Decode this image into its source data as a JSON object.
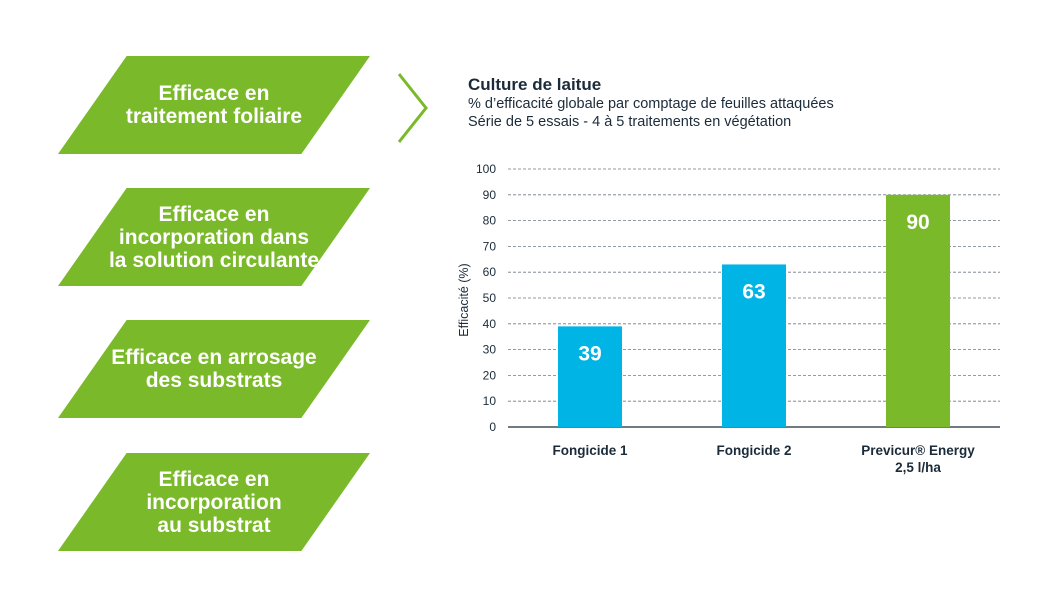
{
  "colors": {
    "green": "#7ab929",
    "blue": "#00b4e6",
    "text": "#1b2b3a",
    "grid": "#6f7b87"
  },
  "benefits": [
    "Efficace en\ntraitement foliaire",
    "Efficace en\nincorporation dans\nla solution circulante",
    "Efficace en arrosage\ndes substrats",
    "Efficace en\nincorporation\nau substrat"
  ],
  "chart_data": {
    "type": "bar",
    "title": "Culture de laitue",
    "subtitle_1": "% d’efficacité globale par comptage de feuilles attaquées",
    "subtitle_2": "Série de 5 essais - 4 à 5 traitements en végétation",
    "ylabel": "Efficacité (%)",
    "xlabel": "",
    "ylim": [
      0,
      100
    ],
    "yticks": [
      "0",
      "10",
      "20",
      "30",
      "40",
      "50",
      "60",
      "70",
      "80",
      "90",
      "100"
    ],
    "grid": true,
    "categories": [
      {
        "line1": "Fongicide 1",
        "line2": ""
      },
      {
        "line1": "Fongicide 2",
        "line2": ""
      },
      {
        "line1": "Previcur® Energy",
        "line2": "2,5 l/ha"
      }
    ],
    "values": [
      39,
      63,
      90
    ],
    "bar_colors": [
      "#00b4e6",
      "#00b4e6",
      "#7ab929"
    ],
    "data_labels": [
      "39",
      "63",
      "90"
    ]
  }
}
